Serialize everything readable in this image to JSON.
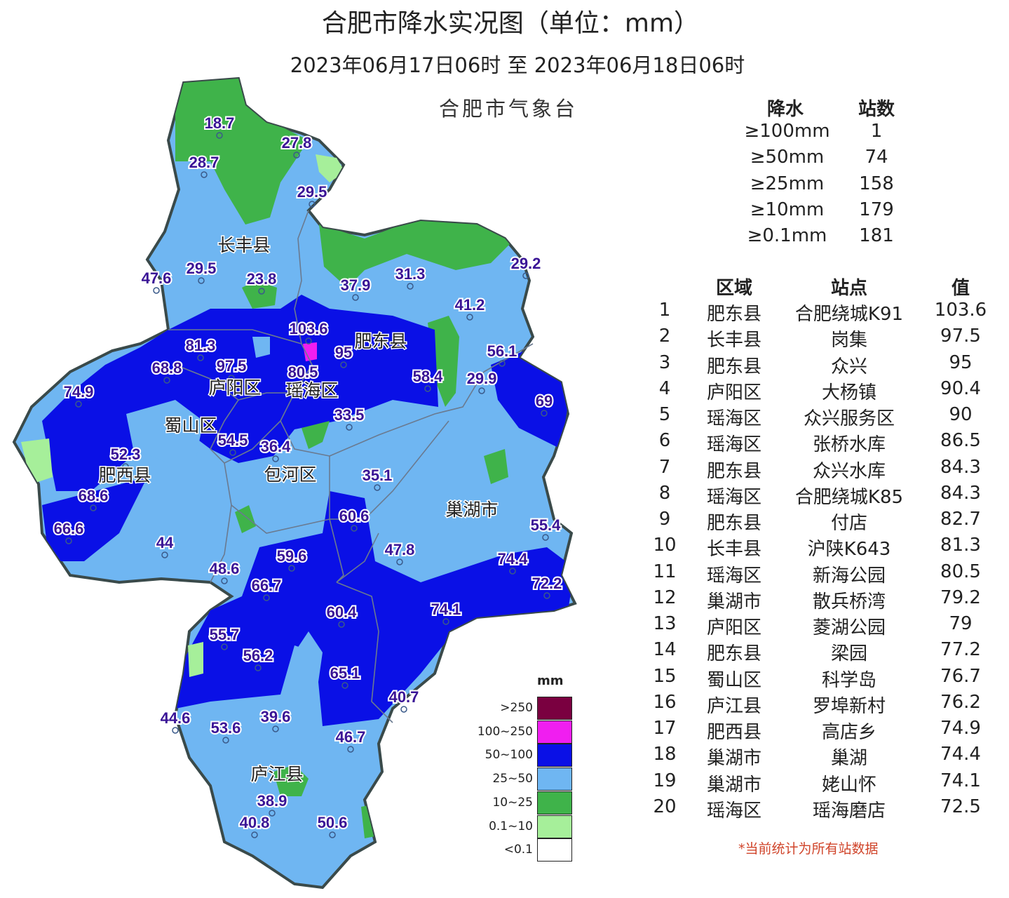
{
  "title": "合肥市降水实况图（单位：mm）",
  "subtitle": "2023年06月17日06时  至  2023年06月18日06时",
  "agency": "合肥市气象台",
  "summary": {
    "headers": [
      "降水",
      "站数"
    ],
    "rows": [
      {
        "threshold": "≥100mm",
        "count": "1"
      },
      {
        "threshold": "≥50mm",
        "count": "74"
      },
      {
        "threshold": "≥25mm",
        "count": "158"
      },
      {
        "threshold": "≥10mm",
        "count": "179"
      },
      {
        "threshold": "≥0.1mm",
        "count": "181"
      }
    ]
  },
  "ranking": {
    "headers": [
      "区域",
      "站点",
      "值"
    ],
    "rows": [
      {
        "rank": "1",
        "region": "肥东县",
        "station": "合肥绕城K91",
        "value": "103.6"
      },
      {
        "rank": "2",
        "region": "长丰县",
        "station": "岗集",
        "value": "97.5"
      },
      {
        "rank": "3",
        "region": "肥东县",
        "station": "众兴",
        "value": "95"
      },
      {
        "rank": "4",
        "region": "庐阳区",
        "station": "大杨镇",
        "value": "90.4"
      },
      {
        "rank": "5",
        "region": "瑶海区",
        "station": "众兴服务区",
        "value": "90"
      },
      {
        "rank": "6",
        "region": "瑶海区",
        "station": "张桥水库",
        "value": "86.5"
      },
      {
        "rank": "7",
        "region": "肥东县",
        "station": "众兴水库",
        "value": "84.3"
      },
      {
        "rank": "8",
        "region": "瑶海区",
        "station": "合肥绕城K85",
        "value": "84.3"
      },
      {
        "rank": "9",
        "region": "肥东县",
        "station": "付店",
        "value": "82.7"
      },
      {
        "rank": "10",
        "region": "长丰县",
        "station": "沪陕K643",
        "value": "81.3"
      },
      {
        "rank": "11",
        "region": "瑶海区",
        "station": "新海公园",
        "value": "80.5"
      },
      {
        "rank": "12",
        "region": "巢湖市",
        "station": "散兵桥湾",
        "value": "79.2"
      },
      {
        "rank": "13",
        "region": "庐阳区",
        "station": "菱湖公园",
        "value": "79"
      },
      {
        "rank": "14",
        "region": "肥东县",
        "station": "梁园",
        "value": "77.2"
      },
      {
        "rank": "15",
        "region": "蜀山区",
        "station": "科学岛",
        "value": "76.7"
      },
      {
        "rank": "16",
        "region": "庐江县",
        "station": "罗埠新村",
        "value": "76.2"
      },
      {
        "rank": "17",
        "region": "肥西县",
        "station": "高店乡",
        "value": "74.9"
      },
      {
        "rank": "18",
        "region": "巢湖市",
        "station": "巢湖",
        "value": "74.4"
      },
      {
        "rank": "19",
        "region": "巢湖市",
        "station": "姥山怀",
        "value": "74.1"
      },
      {
        "rank": "20",
        "region": "瑶海区",
        "station": "瑶海磨店",
        "value": "72.5"
      }
    ]
  },
  "note": "*当前统计为所有站数据",
  "legend": {
    "unit": "mm",
    "classes": [
      {
        "label": ">250",
        "color": "#7a0040"
      },
      {
        "label": "100~250",
        "color": "#f01ef0"
      },
      {
        "label": "50~100",
        "color": "#0a10e6"
      },
      {
        "label": "25~50",
        "color": "#6fb6f2"
      },
      {
        "label": "10~25",
        "color": "#3fb34a"
      },
      {
        "label": "0.1~10",
        "color": "#a6ef9a"
      },
      {
        "label": "<0.1",
        "color": "#ffffff"
      }
    ]
  },
  "map": {
    "districts": [
      "长丰县",
      "肥东县",
      "庐阳区",
      "瑶海区",
      "蜀山区",
      "肥西县",
      "包河区",
      "巢湖市",
      "庐江县"
    ],
    "stations": [
      "18.7",
      "27.8",
      "28.7",
      "29.5",
      "29.5",
      "47.6",
      "23.8",
      "37.9",
      "31.3",
      "29.2",
      "41.2",
      "103.6",
      "95",
      "81.3",
      "68.8",
      "97.5",
      "56.1",
      "58.4",
      "29.9",
      "74.9",
      "80.5",
      "69",
      "33.5",
      "52.3",
      "54.5",
      "36.4",
      "35.1",
      "68.6",
      "60.6",
      "66.6",
      "55.4",
      "44",
      "47.8",
      "59.6",
      "74.4",
      "48.6",
      "66.7",
      "72.2",
      "60.4",
      "74.1",
      "55.7",
      "56.2",
      "65.1",
      "40.7",
      "44.6",
      "39.6",
      "53.6",
      "46.7",
      "38.9",
      "40.8",
      "50.6"
    ]
  }
}
